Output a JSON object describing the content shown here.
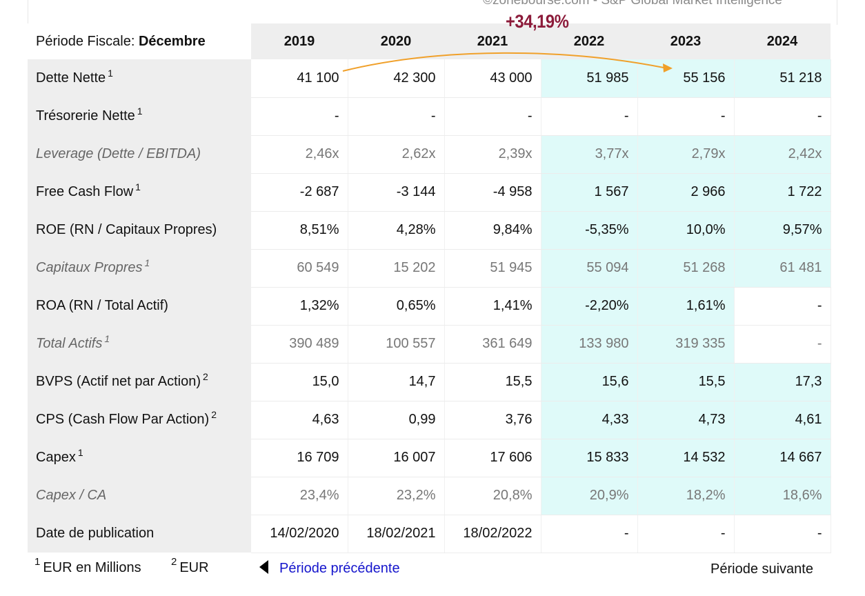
{
  "source": "©zonebourse.com - S&P Global Market Intelligence",
  "annotation": {
    "text": "+34,19%",
    "from": "Dette Nette 2019",
    "to": "Dette Nette 2023",
    "arrow_color": "#f0a02a",
    "text_color": "#8c1b3a"
  },
  "header": {
    "corner_prefix": "Période Fiscale: ",
    "corner_month": "Décembre",
    "years": [
      "2019",
      "2020",
      "2021",
      "2022",
      "2023",
      "2024"
    ]
  },
  "rows": [
    {
      "label": "Dette Nette",
      "sup": "1",
      "italic": false,
      "values": [
        "41 100",
        "42 300",
        "43 000",
        "51 985",
        "55 156",
        "51 218"
      ]
    },
    {
      "label": "Trésorerie Nette",
      "sup": "1",
      "italic": false,
      "values": [
        "-",
        "-",
        "-",
        "-",
        "-",
        "-"
      ]
    },
    {
      "label": "Leverage (Dette / EBITDA)",
      "sup": "",
      "italic": true,
      "values": [
        "2,46x",
        "2,62x",
        "2,39x",
        "3,77x",
        "2,79x",
        "2,42x"
      ]
    },
    {
      "label": "Free Cash Flow",
      "sup": "1",
      "italic": false,
      "values": [
        "-2 687",
        "-3 144",
        "-4 958",
        "1 567",
        "2 966",
        "1 722"
      ]
    },
    {
      "label": "ROE (RN / Capitaux Propres)",
      "sup": "",
      "italic": false,
      "values": [
        "8,51%",
        "4,28%",
        "9,84%",
        "-5,35%",
        "10,0%",
        "9,57%"
      ]
    },
    {
      "label": "Capitaux Propres",
      "sup": "1",
      "italic": true,
      "values": [
        "60 549",
        "15 202",
        "51 945",
        "55 094",
        "51 268",
        "61 481"
      ]
    },
    {
      "label": "ROA (RN / Total Actif)",
      "sup": "",
      "italic": false,
      "values": [
        "1,32%",
        "0,65%",
        "1,41%",
        "-2,20%",
        "1,61%",
        "-"
      ]
    },
    {
      "label": "Total Actifs",
      "sup": "1",
      "italic": true,
      "values": [
        "390 489",
        "100 557",
        "361 649",
        "133 980",
        "319 335",
        "-"
      ]
    },
    {
      "label": "BVPS (Actif net par Action)",
      "sup": "2",
      "italic": false,
      "values": [
        "15,0",
        "14,7",
        "15,5",
        "15,6",
        "15,5",
        "17,3"
      ]
    },
    {
      "label": "CPS (Cash Flow Par Action)",
      "sup": "2",
      "italic": false,
      "values": [
        "4,63",
        "0,99",
        "3,76",
        "4,33",
        "4,73",
        "4,61"
      ]
    },
    {
      "label": "Capex",
      "sup": "1",
      "italic": false,
      "values": [
        "16 709",
        "16 007",
        "17 606",
        "15 833",
        "14 532",
        "14 667"
      ]
    },
    {
      "label": "Capex / CA",
      "sup": "",
      "italic": true,
      "values": [
        "23,4%",
        "23,2%",
        "20,8%",
        "20,9%",
        "18,2%",
        "18,6%"
      ]
    },
    {
      "label": "Date de publication",
      "sup": "",
      "italic": false,
      "values": [
        "14/02/2020",
        "18/02/2021",
        "18/02/2022",
        "-",
        "-",
        "-"
      ]
    }
  ],
  "footer": {
    "note1_sup": "1",
    "note1": "EUR en Millions",
    "note2_sup": "2",
    "note2": "EUR",
    "prev_label": "Période précédente",
    "next_label": "Période suivante"
  },
  "colors": {
    "estimate_highlight": "#dffaf9",
    "label_background": "#eeeeee",
    "link": "#1515cc"
  }
}
